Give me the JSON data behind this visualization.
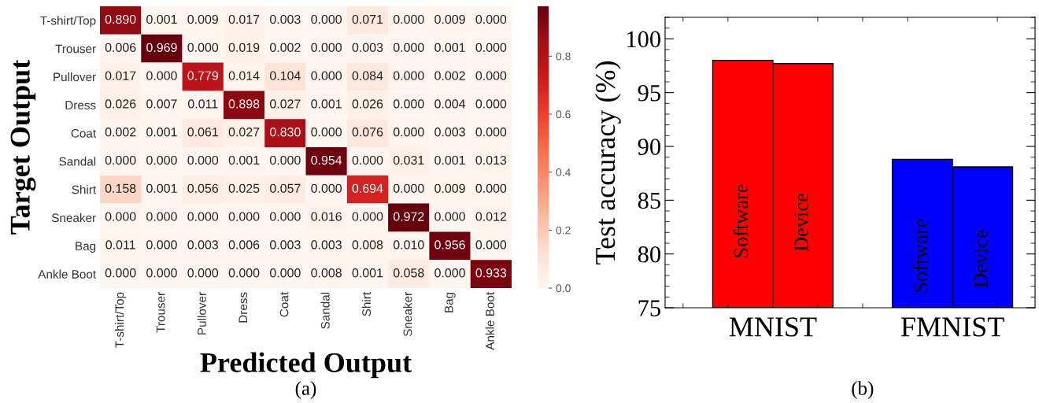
{
  "chart_data": [
    {
      "type": "heatmap",
      "xlabel": "Predicted Output",
      "ylabel": "Target Output",
      "annotations": [
        "(a)"
      ],
      "categories": [
        "T-shirt/Top",
        "Trouser",
        "Pullover",
        "Dress",
        "Coat",
        "Sandal",
        "Shirt",
        "Sneaker",
        "Bag",
        "Ankle Boot"
      ],
      "y_categories": [
        "T-shirt/Top",
        "Trouser",
        "Pullover",
        "Dress",
        "Coat",
        "Sandal",
        "Shirt",
        "Sneaker",
        "Bag",
        "Ankle Boot"
      ],
      "cells": [
        [
          0.89,
          0.001,
          0.009,
          0.017,
          0.003,
          0.0,
          0.071,
          0.0,
          0.009,
          0.0
        ],
        [
          0.006,
          0.969,
          0.0,
          0.019,
          0.002,
          0.0,
          0.003,
          0.0,
          0.001,
          0.0
        ],
        [
          0.017,
          0.0,
          0.779,
          0.014,
          0.104,
          0.0,
          0.084,
          0.0,
          0.002,
          0.0
        ],
        [
          0.026,
          0.007,
          0.011,
          0.898,
          0.027,
          0.001,
          0.026,
          0.0,
          0.004,
          0.0
        ],
        [
          0.002,
          0.001,
          0.061,
          0.027,
          0.83,
          0.0,
          0.076,
          0.0,
          0.003,
          0.0
        ],
        [
          0.0,
          0.0,
          0.0,
          0.001,
          0.0,
          0.954,
          0.0,
          0.031,
          0.001,
          0.013
        ],
        [
          0.158,
          0.001,
          0.056,
          0.025,
          0.057,
          0.0,
          0.694,
          0.0,
          0.009,
          0.0
        ],
        [
          0.0,
          0.0,
          0.0,
          0.0,
          0.0,
          0.016,
          0.0,
          0.972,
          0.0,
          0.012
        ],
        [
          0.011,
          0.0,
          0.003,
          0.006,
          0.003,
          0.003,
          0.008,
          0.01,
          0.956,
          0.0
        ],
        [
          0.0,
          0.0,
          0.0,
          0.0,
          0.0,
          0.008,
          0.001,
          0.058,
          0.0,
          0.933
        ]
      ],
      "cell_labels": [
        [
          "0.890",
          "0.001",
          "0.009",
          "0.017",
          "0.003",
          "0.000",
          "0.071",
          "0.000",
          "0.009",
          "0.000"
        ],
        [
          "0.006",
          "0.969",
          "0.000",
          "0.019",
          "0.002",
          "0.000",
          "0.003",
          "0.000",
          "0.001",
          "0.000"
        ],
        [
          "0.017",
          "0.000",
          "0.779",
          "0.014",
          "0.104",
          "0.000",
          "0.084",
          "0.000",
          "0.002",
          "0.000"
        ],
        [
          "0.026",
          "0.007",
          "0.011",
          "0.898",
          "0.027",
          "0.001",
          "0.026",
          "0.000",
          "0.004",
          "0.000"
        ],
        [
          "0.002",
          "0.001",
          "0.061",
          "0.027",
          "0.830",
          "0.000",
          "0.076",
          "0.000",
          "0.003",
          "0.000"
        ],
        [
          "0.000",
          "0.000",
          "0.000",
          "0.001",
          "0.000",
          "0.954",
          "0.000",
          "0.031",
          "0.001",
          "0.013"
        ],
        [
          "0.158",
          "0.001",
          "0.056",
          "0.025",
          "0.057",
          "0.000",
          "0.694",
          "0.000",
          "0.009",
          "0.000"
        ],
        [
          "0.000",
          "0.000",
          "0.000",
          "0.000",
          "0.000",
          "0.016",
          "0.000",
          "0.972",
          "0.000",
          "0.012"
        ],
        [
          "0.011",
          "0.000",
          "0.003",
          "0.006",
          "0.003",
          "0.003",
          "0.008",
          "0.010",
          "0.956",
          "0.000"
        ],
        [
          "0.000",
          "0.000",
          "0.000",
          "0.000",
          "0.000",
          "0.008",
          "0.001",
          "0.058",
          "0.000",
          "0.933"
        ]
      ],
      "clim": [
        0,
        0.972
      ],
      "cticks": [
        {
          "value": 0,
          "label": "0.0"
        },
        {
          "value": 0.2,
          "label": "0.2"
        },
        {
          "value": 0.4,
          "label": "0.4"
        },
        {
          "value": 0.6,
          "label": "0.6"
        },
        {
          "value": 0.8,
          "label": "0.8"
        }
      ]
    },
    {
      "type": "bar",
      "ylabel": "Test accuracy (%)",
      "annotations": [
        "(b)"
      ],
      "categories": [
        "MNIST",
        "FMNIST"
      ],
      "ylim": [
        75,
        102
      ],
      "yticks": [
        75,
        80,
        85,
        90,
        95,
        100
      ],
      "series": [
        {
          "name": "Software",
          "colors": [
            "#ff0000",
            "#0000ff"
          ],
          "values": [
            98.0,
            88.8
          ]
        },
        {
          "name": "Device",
          "colors": [
            "#ff0000",
            "#0000ff"
          ],
          "values": [
            97.7,
            88.1
          ]
        }
      ]
    }
  ]
}
